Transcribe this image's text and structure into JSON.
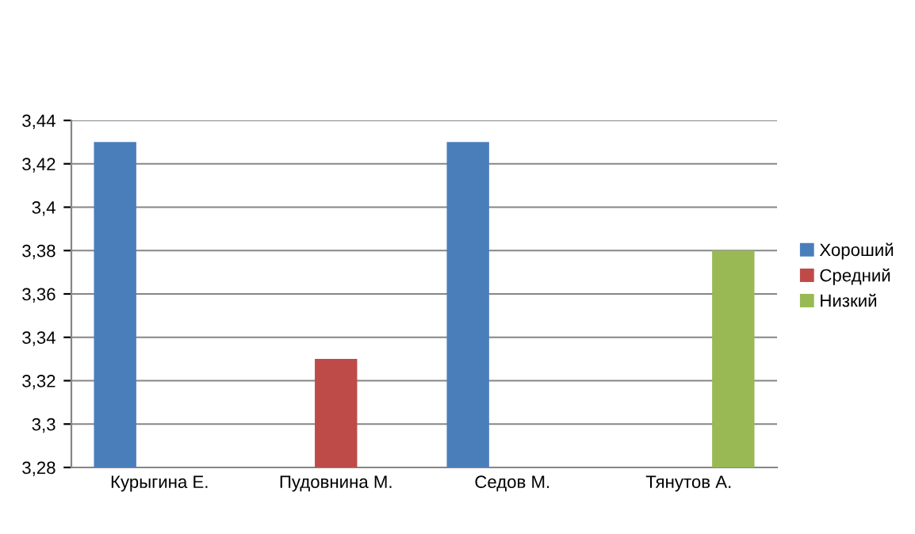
{
  "chart_data": {
    "type": "bar",
    "categories": [
      "Курыгина Е.",
      "Пудовнина М.",
      "Седов М.",
      "Тянутов А."
    ],
    "series": [
      {
        "name": "Хороший",
        "color": "#4a7ebb",
        "values": [
          3.43,
          null,
          3.43,
          null
        ]
      },
      {
        "name": "Средний",
        "color": "#be4b48",
        "values": [
          null,
          3.33,
          null,
          null
        ]
      },
      {
        "name": "Низкий",
        "color": "#98b954",
        "values": [
          null,
          null,
          null,
          3.38
        ]
      }
    ],
    "ylim": [
      3.28,
      3.44
    ],
    "yticks": [
      {
        "value": 3.28,
        "label": "3,28"
      },
      {
        "value": 3.3,
        "label": "3,3"
      },
      {
        "value": 3.32,
        "label": "3,32"
      },
      {
        "value": 3.34,
        "label": "3,34"
      },
      {
        "value": 3.36,
        "label": "3,36"
      },
      {
        "value": 3.38,
        "label": "3,38"
      },
      {
        "value": 3.4,
        "label": "3,4"
      },
      {
        "value": 3.42,
        "label": "3,42"
      },
      {
        "value": 3.44,
        "label": "3,44"
      }
    ],
    "grid": "y",
    "legend": "right"
  }
}
